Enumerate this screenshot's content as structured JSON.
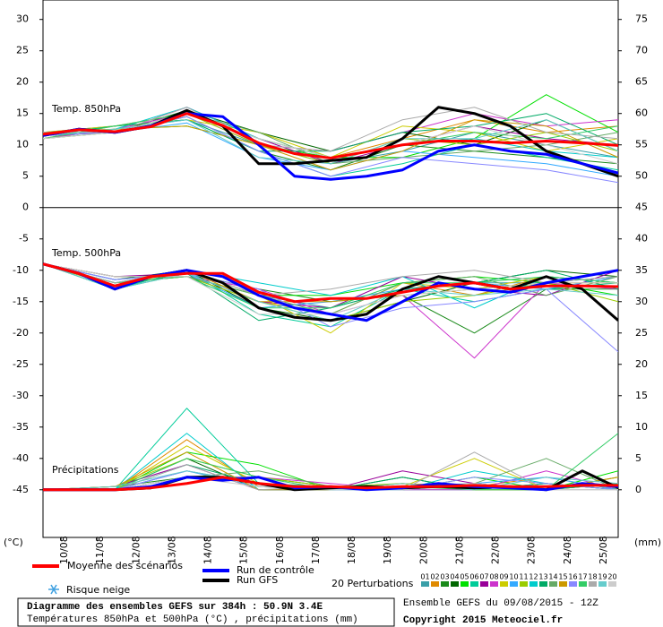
{
  "chart_data": {
    "type": "line",
    "title": "Diagramme des ensembles GEFS sur 384h : 50.9N 3.4E",
    "subtitle": "Températures 850hPa et 500hPa (°C) , précipitations (mm)",
    "run_info": "Ensemble GEFS du 09/08/2015 - 12Z",
    "copyright": "Copyright 2015 Meteociel.fr",
    "y_label": "(°C)",
    "y2_label": "(mm)",
    "snow_label": "Risque neige",
    "perturbations_label": "20 Perturbations",
    "xlim": [
      0,
      384
    ],
    "xticks": [
      {
        "value": 12,
        "label": "10/08"
      },
      {
        "value": 36,
        "label": "11/08"
      },
      {
        "value": 60,
        "label": "12/08"
      },
      {
        "value": 84,
        "label": "13/08"
      },
      {
        "value": 108,
        "label": "14/08"
      },
      {
        "value": 132,
        "label": "15/08"
      },
      {
        "value": 156,
        "label": "16/08"
      },
      {
        "value": 180,
        "label": "17/08"
      },
      {
        "value": 204,
        "label": "18/08"
      },
      {
        "value": 228,
        "label": "19/08"
      },
      {
        "value": 252,
        "label": "20/08"
      },
      {
        "value": 276,
        "label": "21/08"
      },
      {
        "value": 300,
        "label": "22/08"
      },
      {
        "value": 324,
        "label": "23/08"
      },
      {
        "value": 348,
        "label": "24/08"
      },
      {
        "value": 372,
        "label": "25/08"
      }
    ],
    "ylim": [
      -52.6,
      33.1
    ],
    "yticks": [
      30,
      25,
      20,
      15,
      10,
      5,
      0,
      -5,
      -10,
      -15,
      -20,
      -25,
      -30,
      -35,
      -40,
      -45
    ],
    "y2lim": [
      -7.6,
      78.1
    ],
    "y2ticks": [
      75,
      70,
      65,
      60,
      55,
      50,
      45,
      40,
      35,
      30,
      25,
      20,
      15,
      10,
      5,
      0
    ],
    "panel_boundaries": [
      0
    ],
    "x": [
      0,
      24,
      48,
      72,
      96,
      120,
      144,
      168,
      192,
      216,
      240,
      264,
      288,
      312,
      336,
      360,
      384
    ],
    "perturbation_x": [
      0,
      48,
      96,
      144,
      192,
      240,
      288,
      336,
      384
    ],
    "runs": [
      {
        "name": "Moyenne des scénarios",
        "color": "#ff0000"
      },
      {
        "name": "Run de contrôle",
        "color": "#0000ff"
      },
      {
        "name": "Run GFS",
        "color": "#000000"
      }
    ],
    "perturbations": [
      {
        "name": "01",
        "color": "#3a9fa8"
      },
      {
        "name": "02",
        "color": "#e08a00"
      },
      {
        "name": "03",
        "color": "#1a8a1a"
      },
      {
        "name": "04",
        "color": "#006600"
      },
      {
        "name": "05",
        "color": "#00e000"
      },
      {
        "name": "06",
        "color": "#00cc99"
      },
      {
        "name": "07",
        "color": "#990099"
      },
      {
        "name": "08",
        "color": "#cc33cc"
      },
      {
        "name": "09",
        "color": "#cccc00"
      },
      {
        "name": "10",
        "color": "#33aaff"
      },
      {
        "name": "11",
        "color": "#99cc00"
      },
      {
        "name": "12",
        "color": "#00cccc"
      },
      {
        "name": "13",
        "color": "#00aa66"
      },
      {
        "name": "14",
        "color": "#66aa66"
      },
      {
        "name": "15",
        "color": "#cc9900"
      },
      {
        "name": "16",
        "color": "#8888ff"
      },
      {
        "name": "17",
        "color": "#33cc66"
      },
      {
        "name": "18",
        "color": "#aaaaaa"
      },
      {
        "name": "19",
        "color": "#66cccc"
      },
      {
        "name": "20",
        "color": "#cccccc"
      }
    ],
    "panels": [
      {
        "label": "Temp. 850hPa",
        "axis": "y",
        "run_values": [
          [
            11.7,
            12.4,
            12.1,
            12.9,
            15,
            13.1,
            10.3,
            8.6,
            7.9,
            8.9,
            10,
            10.6,
            10.6,
            10.3,
            10.6,
            10.3,
            9.9
          ],
          [
            11.5,
            12.5,
            12,
            13,
            15,
            14.5,
            10,
            5,
            4.5,
            5,
            6,
            9,
            10,
            9,
            8.5,
            7,
            5.5
          ],
          [
            11.5,
            12.5,
            12,
            13,
            15.5,
            13,
            7,
            7,
            7.5,
            8,
            11,
            16,
            15,
            13,
            9,
            7,
            5
          ]
        ],
        "perturbation_values": [
          [
            11.5,
            12.5,
            14,
            10,
            7,
            9,
            12,
            10,
            8
          ],
          [
            11,
            13,
            15,
            11,
            8,
            11,
            14,
            12,
            13
          ],
          [
            12,
            12,
            14.5,
            9,
            6,
            10,
            9,
            8,
            7
          ],
          [
            11.5,
            12,
            15.5,
            12,
            9,
            12,
            10,
            14,
            9
          ],
          [
            11,
            12.5,
            13,
            10,
            8,
            8,
            11,
            18,
            12
          ],
          [
            12,
            13,
            14,
            9,
            5,
            7,
            10,
            8,
            6
          ],
          [
            11.5,
            12,
            16,
            11,
            7,
            10,
            13,
            11,
            10
          ],
          [
            11,
            12.5,
            15,
            10,
            9,
            12,
            15,
            13,
            14
          ],
          [
            12,
            13,
            14,
            12,
            8,
            13,
            12,
            9,
            11
          ],
          [
            11.5,
            12,
            13.5,
            8,
            6,
            9,
            8,
            7,
            5
          ],
          [
            11,
            12,
            15,
            10,
            7,
            11,
            10,
            12,
            9
          ],
          [
            12,
            12.5,
            16,
            11,
            8,
            10,
            11,
            9,
            8
          ],
          [
            11.5,
            13,
            14,
            9,
            9,
            12,
            13,
            15,
            10
          ],
          [
            11,
            12,
            15,
            12,
            7,
            8,
            9,
            10,
            12
          ],
          [
            12,
            12.5,
            13,
            10,
            6,
            9,
            14,
            13,
            8
          ],
          [
            11.5,
            12,
            14.5,
            9,
            5,
            8,
            7,
            6,
            4
          ],
          [
            11,
            13,
            15,
            11,
            8,
            10,
            12,
            11,
            13
          ],
          [
            12,
            12,
            16,
            10,
            9,
            14,
            16,
            12,
            11
          ],
          [
            11.5,
            12.5,
            14,
            8,
            7,
            11,
            11,
            14,
            9
          ],
          [
            11,
            12,
            15,
            11,
            8,
            10,
            13,
            10,
            7
          ]
        ]
      },
      {
        "label": "Temp. 500hPa",
        "axis": "y",
        "run_values": [
          [
            -9,
            -10.5,
            -12.5,
            -11,
            -10.5,
            -10.5,
            -13.5,
            -15,
            -14.5,
            -14.5,
            -13.5,
            -12.5,
            -12,
            -13,
            -12.5,
            -12.5,
            -12.6
          ],
          [
            -9,
            -10.5,
            -13,
            -11,
            -10,
            -11,
            -14,
            -16,
            -17,
            -18,
            -15,
            -12,
            -13,
            -13.5,
            -12,
            -11,
            -10
          ],
          [
            -9,
            -10.5,
            -13,
            -11,
            -10,
            -12,
            -16,
            -17.5,
            -18,
            -17,
            -13,
            -11,
            -12,
            -13,
            -11,
            -13,
            -18
          ]
        ],
        "perturbation_values": [
          [
            -9,
            -12,
            -10,
            -14,
            -16,
            -13,
            -12,
            -12,
            -11
          ],
          [
            -9,
            -11,
            -11,
            -15,
            -17,
            -12,
            -14,
            -11,
            -12
          ],
          [
            -9,
            -12.5,
            -10.5,
            -13,
            -15,
            -14,
            -20,
            -13,
            -13
          ],
          [
            -9,
            -11.5,
            -10,
            -16,
            -18,
            -15,
            -12,
            -10,
            -11
          ],
          [
            -9,
            -12,
            -11,
            -14,
            -14,
            -12,
            -11,
            -12,
            -14
          ],
          [
            -9,
            -13,
            -10,
            -17,
            -19,
            -13,
            -15,
            -13,
            -12
          ],
          [
            -9,
            -11,
            -10.5,
            -15,
            -16,
            -11,
            -13,
            -14,
            -10
          ],
          [
            -9,
            -12,
            -11,
            -13,
            -17,
            -14,
            -24,
            -12,
            -13
          ],
          [
            -9,
            -12.5,
            -10,
            -14,
            -20,
            -12,
            -13,
            -11,
            -12
          ],
          [
            -9,
            -11.5,
            -10.5,
            -16,
            -15,
            -13,
            -12,
            -13,
            -11
          ],
          [
            -9,
            -12,
            -11,
            -15,
            -18,
            -15,
            -14,
            -12,
            -15
          ],
          [
            -9,
            -12,
            -10,
            -12,
            -14,
            -11,
            -16,
            -11,
            -12
          ],
          [
            -9,
            -13,
            -10.5,
            -18,
            -16,
            -13,
            -12,
            -10,
            -13
          ],
          [
            -9,
            -11,
            -11,
            -14,
            -17,
            -12,
            -11,
            -14,
            -11
          ],
          [
            -9,
            -12.5,
            -10,
            -15,
            -15,
            -14,
            -13,
            -12,
            -12
          ],
          [
            -9,
            -11.5,
            -10.5,
            -13,
            -19,
            -16,
            -15,
            -13,
            -23
          ],
          [
            -9,
            -12,
            -11,
            -16,
            -16,
            -12,
            -12,
            -11,
            -12
          ],
          [
            -9,
            -12,
            -10,
            -14,
            -13,
            -11,
            -10,
            -12,
            -11
          ],
          [
            -9,
            -13,
            -10.5,
            -15,
            -18,
            -13,
            -14,
            -13,
            -14
          ],
          [
            -9,
            -11,
            -11,
            -17,
            -17,
            -14,
            -13,
            -12,
            -12
          ]
        ]
      },
      {
        "label": "Précipitations",
        "axis": "y2",
        "run_values": [
          [
            0,
            0,
            0,
            0.3,
            1,
            2,
            1,
            0.5,
            0.5,
            0.3,
            0.5,
            0.5,
            0.7,
            0.5,
            0.5,
            0.7,
            0.7
          ],
          [
            0,
            0,
            0,
            0.5,
            2,
            1.5,
            2,
            0.3,
            0.5,
            0,
            0.3,
            1,
            0.5,
            0.3,
            0,
            1,
            0.5
          ],
          [
            0,
            0,
            0,
            0.3,
            2,
            2,
            1,
            0,
            0.3,
            0.5,
            0.3,
            0.5,
            0.3,
            0.5,
            0,
            3,
            0.3
          ]
        ],
        "perturbation_values": [
          [
            0,
            0,
            3,
            1,
            0,
            0.5,
            1,
            0,
            2
          ],
          [
            0,
            0,
            8,
            0.5,
            0,
            1,
            0.5,
            2,
            0
          ],
          [
            0,
            0.5,
            2,
            2,
            0.5,
            0,
            1,
            0,
            1
          ],
          [
            0,
            0,
            5,
            0,
            0,
            2,
            0,
            1,
            0
          ],
          [
            0,
            0,
            6,
            4,
            0,
            0,
            2,
            0,
            3
          ],
          [
            0,
            0,
            13,
            1,
            0.5,
            0,
            0,
            1,
            0
          ],
          [
            0,
            0.5,
            4,
            0,
            0,
            3,
            1,
            0,
            1
          ],
          [
            0,
            0,
            2,
            2,
            1,
            0,
            0,
            3,
            0
          ],
          [
            0,
            0,
            7,
            1,
            0,
            0.5,
            5,
            0,
            1
          ],
          [
            0,
            0,
            3,
            0.5,
            0,
            0,
            1,
            2,
            0
          ],
          [
            0,
            0.5,
            5,
            2,
            0.5,
            1,
            0,
            0,
            2
          ],
          [
            0,
            0,
            9,
            0,
            0,
            0,
            3,
            1,
            0
          ],
          [
            0,
            0,
            4,
            1,
            0,
            2,
            0,
            0,
            1
          ],
          [
            0,
            0,
            2,
            3,
            0.5,
            0,
            1,
            5,
            0
          ],
          [
            0,
            0.5,
            6,
            0,
            0,
            1,
            0,
            0,
            2
          ],
          [
            0,
            0,
            3,
            1,
            0,
            0,
            2,
            1,
            0
          ],
          [
            0,
            0,
            5,
            2,
            0,
            0.5,
            0,
            0,
            9
          ],
          [
            0,
            0,
            4,
            0,
            0.5,
            0,
            6,
            0,
            0
          ],
          [
            0,
            0.5,
            3,
            1,
            0,
            1,
            0,
            2,
            1
          ],
          [
            0,
            0,
            2,
            0.5,
            0,
            0,
            1,
            0,
            0
          ]
        ]
      }
    ]
  }
}
